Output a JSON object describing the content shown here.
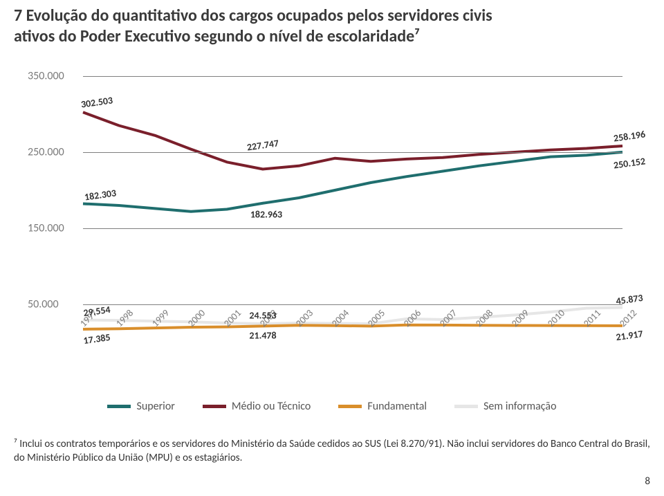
{
  "title_line1": "7 Evolução do quantitativo dos cargos ocupados pelos servidores civis",
  "title_line2": "ativos do Poder Executivo segundo o nível de escolaridade⁷",
  "chart": {
    "type": "line",
    "background_color": "#ffffff",
    "grid_color": "#7f7f7f",
    "axis_label_color": "#7a7a7a",
    "axis_fontsize": 16,
    "data_label_fontsize": 14,
    "line_width": 4,
    "ylim": [
      50000,
      350000
    ],
    "yticks": [
      50000,
      150000,
      250000,
      350000
    ],
    "ytick_labels": [
      "50.000",
      "150.000",
      "250.000",
      "350.000"
    ],
    "years": [
      "1997",
      "1998",
      "1999",
      "2000",
      "2001",
      "2002",
      "2003",
      "2004",
      "2005",
      "2006",
      "2007",
      "2008",
      "2009",
      "2010",
      "2011",
      "2012"
    ],
    "series": [
      {
        "name": "Superior",
        "color": "#1f6e6e",
        "values": [
          182303,
          180000,
          176000,
          172000,
          175000,
          182963,
          190000,
          200000,
          210000,
          218000,
          225000,
          232000,
          238000,
          244000,
          246000,
          250152
        ],
        "labels": {
          "0": "182.303",
          "5": "182.963",
          "15": "250.152"
        }
      },
      {
        "name": "Médio ou Técnico",
        "color": "#7a1f2b",
        "values": [
          302503,
          285000,
          272000,
          254000,
          237000,
          227747,
          232000,
          242000,
          238000,
          241000,
          243000,
          247000,
          250000,
          253000,
          255000,
          258196
        ],
        "labels": {
          "0": "302.503",
          "5": "227.747",
          "15": "258.196"
        }
      },
      {
        "name": "Fundamental",
        "color": "#d98e2b",
        "values": [
          17385,
          18000,
          19000,
          20000,
          20500,
          21478,
          22500,
          22000,
          21500,
          23000,
          22800,
          22500,
          22300,
          22200,
          22100,
          21917
        ],
        "labels": {
          "0": "17.385",
          "5": "21.478",
          "15": "21.917"
        }
      },
      {
        "name": "Sem informação",
        "color": "#e6e6e6",
        "values": [
          29554,
          29000,
          28000,
          27000,
          25500,
          24553,
          25500,
          25000,
          24500,
          31000,
          30000,
          33000,
          36000,
          40000,
          45000,
          45873
        ],
        "labels": {
          "0": "29.554",
          "5": "24.553",
          "15": "45.873"
        }
      }
    ]
  },
  "legend": [
    {
      "label": "Superior",
      "color": "#1f6e6e"
    },
    {
      "label": "Médio ou Técnico",
      "color": "#7a1f2b"
    },
    {
      "label": "Fundamental",
      "color": "#d98e2b"
    },
    {
      "label": "Sem informação",
      "color": "#e6e6e6"
    }
  ],
  "footnote": "⁷ Inclui os contratos temporários e os servidores do Ministério da Saúde cedidos ao SUS (Lei 8.270/91). Não inclui servidores do Banco Central do Brasil, do Ministério Público da União (MPU) e os estagiários.",
  "page_number": "8"
}
